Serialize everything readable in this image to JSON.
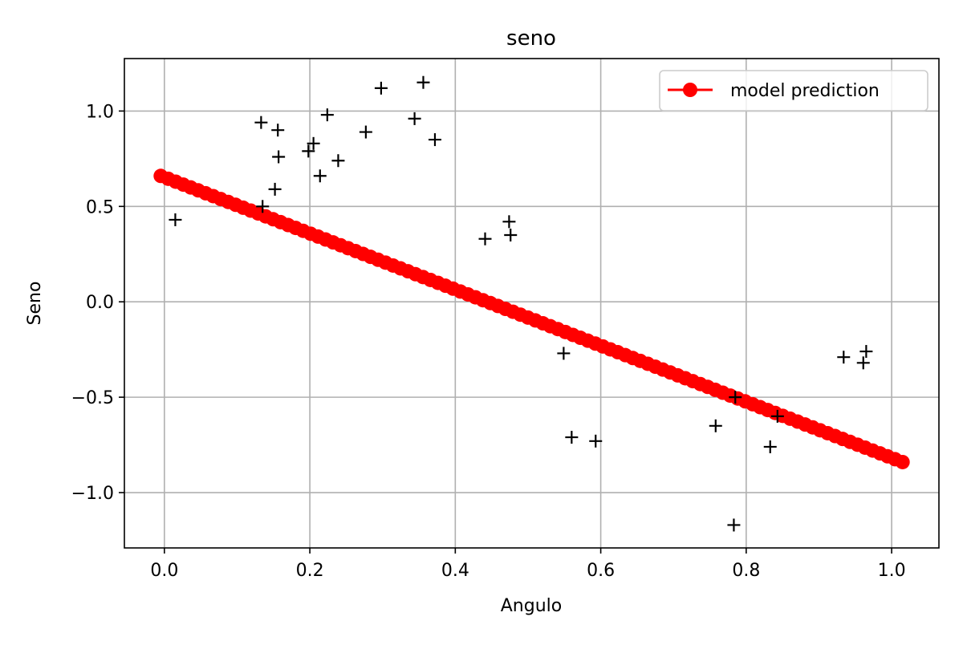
{
  "chart_data": {
    "type": "scatter",
    "title": "seno",
    "xlabel": "Angulo",
    "ylabel": "Seno",
    "xlim": [
      -0.055,
      1.065
    ],
    "ylim": [
      -1.29,
      1.275
    ],
    "grid": true,
    "legend_placement": "top-right",
    "x_ticks": [
      0.0,
      0.2,
      0.4,
      0.6,
      0.8,
      1.0
    ],
    "x_tick_labels": [
      "0.0",
      "0.2",
      "0.4",
      "0.6",
      "0.8",
      "1.0"
    ],
    "y_ticks": [
      -1.0,
      -0.5,
      0.0,
      0.5,
      1.0
    ],
    "y_tick_labels": [
      "−1.0",
      "−0.5",
      "0.0",
      "0.5",
      "1.0"
    ],
    "series": [
      {
        "name": "model prediction",
        "kind": "line-markers",
        "color": "#ff0000",
        "x_start": -0.005,
        "x_end": 1.015,
        "y_start": 0.66,
        "y_end": -0.84,
        "n_points": 100
      },
      {
        "kind": "scatter",
        "marker": "+",
        "color": "#000000",
        "points": [
          [
            0.015,
            0.43
          ],
          [
            0.133,
            0.94
          ],
          [
            0.135,
            0.5
          ],
          [
            0.152,
            0.59
          ],
          [
            0.156,
            0.9
          ],
          [
            0.157,
            0.76
          ],
          [
            0.198,
            0.79
          ],
          [
            0.205,
            0.83
          ],
          [
            0.214,
            0.66
          ],
          [
            0.224,
            0.98
          ],
          [
            0.239,
            0.74
          ],
          [
            0.277,
            0.89
          ],
          [
            0.298,
            1.12
          ],
          [
            0.344,
            0.96
          ],
          [
            0.356,
            1.15
          ],
          [
            0.372,
            0.85
          ],
          [
            0.441,
            0.33
          ],
          [
            0.474,
            0.42
          ],
          [
            0.476,
            0.35
          ],
          [
            0.549,
            -0.27
          ],
          [
            0.56,
            -0.71
          ],
          [
            0.593,
            -0.73
          ],
          [
            0.758,
            -0.65
          ],
          [
            0.783,
            -1.17
          ],
          [
            0.785,
            -0.5
          ],
          [
            0.833,
            -0.76
          ],
          [
            0.843,
            -0.6
          ],
          [
            0.934,
            -0.29
          ],
          [
            0.961,
            -0.32
          ],
          [
            0.965,
            -0.26
          ]
        ]
      }
    ]
  }
}
